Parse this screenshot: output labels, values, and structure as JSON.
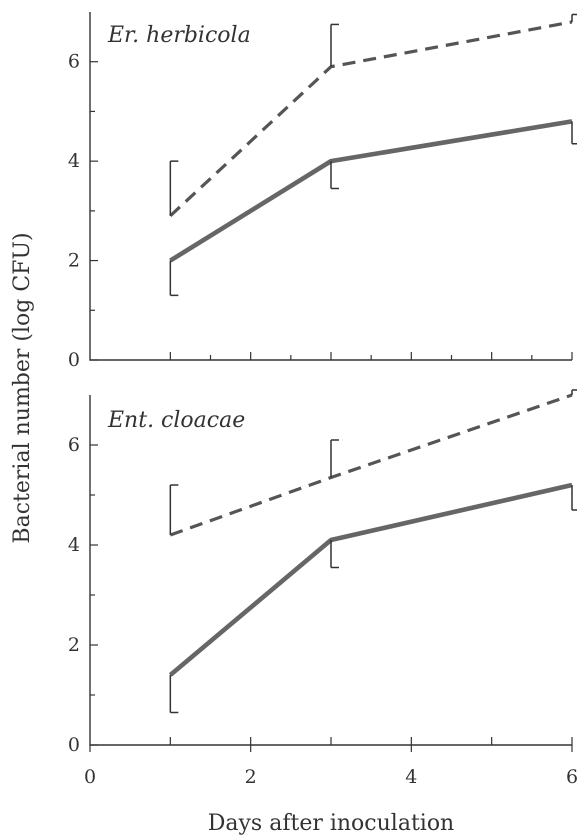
{
  "chart_data": {
    "type": "line",
    "xlabel": "Days after inoculation",
    "ylabel": "Bacterial number (log CFU)",
    "xlim": [
      0,
      6
    ],
    "ylim": [
      0,
      7
    ],
    "xticks": [
      0,
      2,
      4,
      6
    ],
    "yticks": [
      0,
      2,
      4,
      6
    ],
    "grid": false,
    "panels": [
      {
        "title": "Er. herbicola",
        "series": [
          {
            "style": "dashed",
            "color": "#555555",
            "x": [
              1,
              3,
              6
            ],
            "y": [
              2.9,
              5.9,
              6.8
            ],
            "errors": [
              1.1,
              0.85,
              0.15
            ],
            "error_direction": "up"
          },
          {
            "style": "solid",
            "color": "#666666",
            "x": [
              1,
              3,
              6
            ],
            "y": [
              2.0,
              4.0,
              4.8
            ],
            "errors": [
              0.7,
              0.55,
              0.45
            ],
            "error_direction": "down"
          }
        ]
      },
      {
        "title": "Ent. cloacae",
        "series": [
          {
            "style": "dashed",
            "color": "#555555",
            "x": [
              1,
              3,
              6
            ],
            "y": [
              4.2,
              5.35,
              7.0
            ],
            "errors": [
              1.0,
              0.75,
              0.1
            ],
            "error_direction": "up"
          },
          {
            "style": "solid",
            "color": "#666666",
            "x": [
              1,
              3,
              6
            ],
            "y": [
              1.4,
              4.1,
              5.2
            ],
            "errors": [
              0.75,
              0.55,
              0.5
            ],
            "error_direction": "down"
          }
        ]
      }
    ]
  }
}
